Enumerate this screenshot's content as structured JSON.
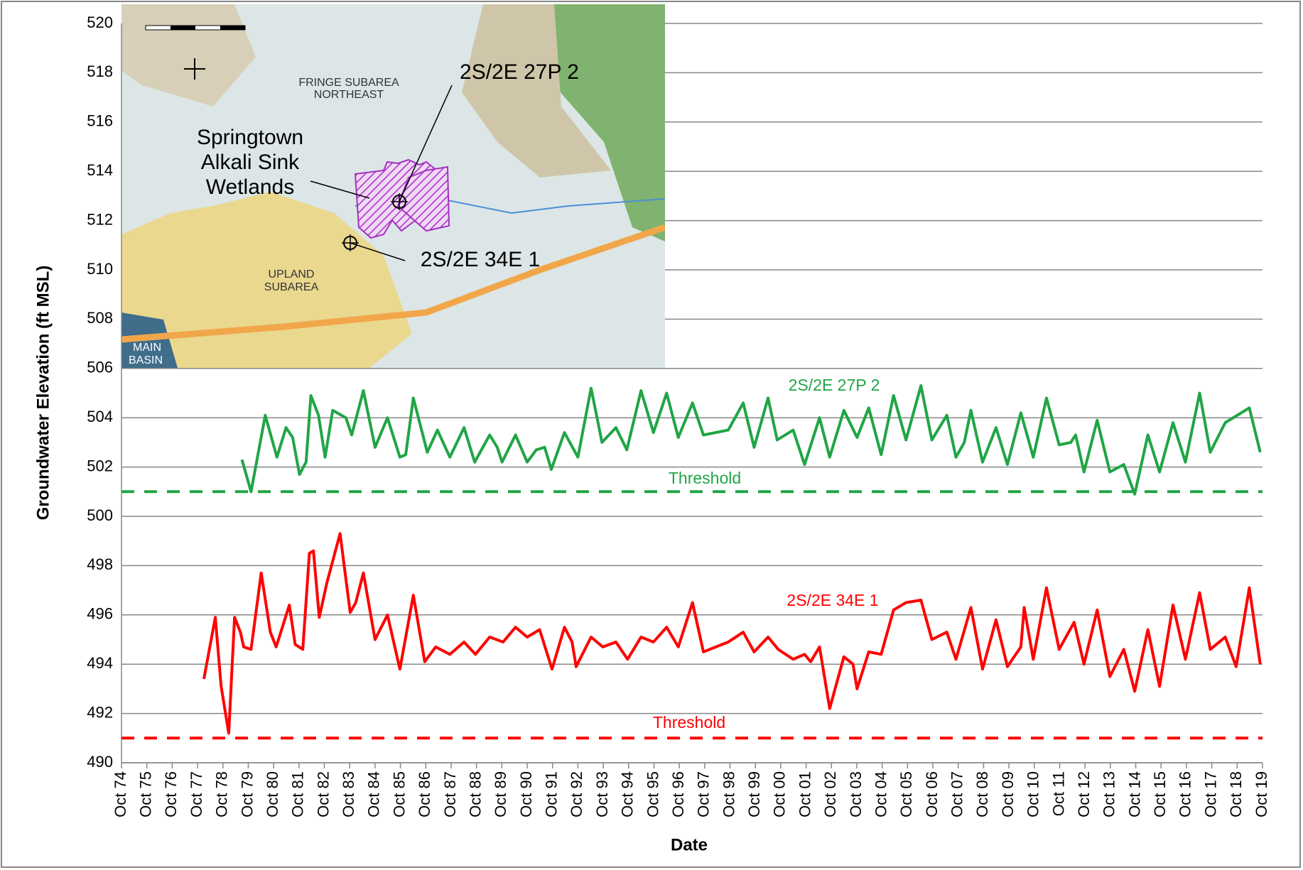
{
  "chart_data": {
    "type": "line",
    "y_label": "Groundwater Elevation (ft MSL)",
    "x_label": "Date",
    "xlim": [
      1974.75,
      2019.75
    ],
    "xticks": [
      {
        "value": 1974.75,
        "label": "Oct 74"
      },
      {
        "value": 1975.75,
        "label": "Oct 75"
      },
      {
        "value": 1976.75,
        "label": "Oct 76"
      },
      {
        "value": 1977.75,
        "label": "Oct 77"
      },
      {
        "value": 1978.75,
        "label": "Oct 78"
      },
      {
        "value": 1979.75,
        "label": "Oct 79"
      },
      {
        "value": 1980.75,
        "label": "Oct 80"
      },
      {
        "value": 1981.75,
        "label": "Oct 81"
      },
      {
        "value": 1982.75,
        "label": "Oct 82"
      },
      {
        "value": 1983.75,
        "label": "Oct 83"
      },
      {
        "value": 1984.75,
        "label": "Oct 84"
      },
      {
        "value": 1985.75,
        "label": "Oct 85"
      },
      {
        "value": 1986.75,
        "label": "Oct 86"
      },
      {
        "value": 1987.75,
        "label": "Oct 87"
      },
      {
        "value": 1988.75,
        "label": "Oct 88"
      },
      {
        "value": 1989.75,
        "label": "Oct 89"
      },
      {
        "value": 1990.75,
        "label": "Oct 90"
      },
      {
        "value": 1991.75,
        "label": "Oct 91"
      },
      {
        "value": 1992.75,
        "label": "Oct 92"
      },
      {
        "value": 1993.75,
        "label": "Oct 93"
      },
      {
        "value": 1994.75,
        "label": "Oct 94"
      },
      {
        "value": 1995.75,
        "label": "Oct 95"
      },
      {
        "value": 1996.75,
        "label": "Oct 96"
      },
      {
        "value": 1997.75,
        "label": "Oct 97"
      },
      {
        "value": 1998.75,
        "label": "Oct 98"
      },
      {
        "value": 1999.75,
        "label": "Oct 99"
      },
      {
        "value": 2000.75,
        "label": "Oct 00"
      },
      {
        "value": 2001.75,
        "label": "Oct 01"
      },
      {
        "value": 2002.75,
        "label": "Oct 02"
      },
      {
        "value": 2003.75,
        "label": "Oct 03"
      },
      {
        "value": 2004.75,
        "label": "Oct 04"
      },
      {
        "value": 2005.75,
        "label": "Oct 05"
      },
      {
        "value": 2006.75,
        "label": "Oct 06"
      },
      {
        "value": 2007.75,
        "label": "Oct 07"
      },
      {
        "value": 2008.75,
        "label": "Oct 08"
      },
      {
        "value": 2009.75,
        "label": "Oct 09"
      },
      {
        "value": 2010.75,
        "label": "Oct 10"
      },
      {
        "value": 2011.75,
        "label": "Oct 11"
      },
      {
        "value": 2012.75,
        "label": "Oct 12"
      },
      {
        "value": 2013.75,
        "label": "Oct 13"
      },
      {
        "value": 2014.75,
        "label": "Oct 14"
      },
      {
        "value": 2015.75,
        "label": "Oct 15"
      },
      {
        "value": 2016.75,
        "label": "Oct 16"
      },
      {
        "value": 2017.75,
        "label": "Oct 17"
      },
      {
        "value": 2018.75,
        "label": "Oct 18"
      },
      {
        "value": 2019.75,
        "label": "Oct 19"
      }
    ],
    "ylim": [
      490,
      520
    ],
    "yticks": [
      490,
      492,
      494,
      496,
      498,
      500,
      502,
      504,
      506,
      508,
      510,
      512,
      514,
      516,
      518,
      520
    ],
    "grid": true,
    "series": [
      {
        "name": "2S/2E 27P 2",
        "color": "#21a546",
        "dashed": false,
        "x": [
          1979.5,
          1979.86,
          1980.42,
          1980.88,
          1981.24,
          1981.5,
          1981.77,
          1982.03,
          1982.22,
          1982.52,
          1982.78,
          1983.08,
          1983.6,
          1983.83,
          1984.29,
          1984.75,
          1985.24,
          1985.73,
          1985.96,
          1986.26,
          1986.81,
          1987.21,
          1987.7,
          1988.26,
          1988.68,
          1989.27,
          1989.57,
          1989.76,
          1990.29,
          1990.75,
          1991.11,
          1991.44,
          1991.7,
          1992.22,
          1992.75,
          1993.27,
          1993.7,
          1994.25,
          1994.68,
          1995.24,
          1995.73,
          1996.25,
          1996.71,
          1997.27,
          1997.7,
          1998.68,
          1999.27,
          1999.7,
          2000.25,
          2000.61,
          2001.24,
          2001.69,
          2002.28,
          2002.68,
          2003.24,
          2003.76,
          2004.22,
          2004.71,
          2005.2,
          2005.69,
          2006.28,
          2006.71,
          2007.3,
          2007.66,
          2007.99,
          2008.25,
          2008.71,
          2009.24,
          2009.69,
          2010.22,
          2010.71,
          2011.23,
          2011.73,
          2012.19,
          2012.38,
          2012.71,
          2013.23,
          2013.73,
          2014.28,
          2014.71,
          2015.23,
          2015.69,
          2016.22,
          2016.71,
          2017.27,
          2017.69,
          2018.28,
          2019.23,
          2019.66
        ],
        "values": [
          502.3,
          501.0,
          504.1,
          502.4,
          503.6,
          503.2,
          501.7,
          502.2,
          504.9,
          504.1,
          502.4,
          504.3,
          504.0,
          503.3,
          505.1,
          502.8,
          504.0,
          502.4,
          502.5,
          504.8,
          502.6,
          503.5,
          502.4,
          503.6,
          502.2,
          503.3,
          502.8,
          502.2,
          503.3,
          502.2,
          502.7,
          502.8,
          501.9,
          503.4,
          502.4,
          505.2,
          503.0,
          503.6,
          502.7,
          505.1,
          503.4,
          505.0,
          503.2,
          504.6,
          503.3,
          503.5,
          504.6,
          502.8,
          504.8,
          503.1,
          503.5,
          502.1,
          504.0,
          502.4,
          504.3,
          503.2,
          504.4,
          502.5,
          504.9,
          503.1,
          505.3,
          503.1,
          504.1,
          502.4,
          503.0,
          504.3,
          502.2,
          503.6,
          502.1,
          504.2,
          502.4,
          504.8,
          502.9,
          503.0,
          503.3,
          501.8,
          503.9,
          501.8,
          502.1,
          500.9,
          503.3,
          501.8,
          503.8,
          502.2,
          505.0,
          502.6,
          503.8,
          504.4,
          502.6
        ]
      },
      {
        "name": "Threshold",
        "color": "#21a546",
        "dashed": true,
        "x": [
          1974.75,
          2019.75
        ],
        "values": [
          501,
          501
        ]
      },
      {
        "name": "2S/2E 34E 1",
        "color": "#ff0000",
        "dashed": false,
        "x": [
          1978.0,
          1978.45,
          1978.68,
          1978.98,
          1979.21,
          1979.44,
          1979.57,
          1979.86,
          1980.26,
          1980.62,
          1980.85,
          1981.37,
          1981.6,
          1981.9,
          1982.16,
          1982.32,
          1982.55,
          1982.85,
          1983.37,
          1983.77,
          1983.99,
          1984.29,
          1984.75,
          1985.24,
          1985.73,
          1986.26,
          1986.71,
          1987.14,
          1987.7,
          1988.26,
          1988.71,
          1989.27,
          1989.8,
          1990.29,
          1990.75,
          1991.24,
          1991.73,
          1992.22,
          1992.52,
          1992.68,
          1993.27,
          1993.73,
          1994.25,
          1994.71,
          1995.24,
          1995.73,
          1996.25,
          1996.71,
          1997.27,
          1997.7,
          1998.68,
          1999.27,
          1999.7,
          2000.25,
          2000.65,
          2001.24,
          2001.69,
          2001.93,
          2002.28,
          2002.68,
          2003.24,
          2003.6,
          2003.76,
          2004.22,
          2004.71,
          2005.2,
          2005.69,
          2006.28,
          2006.71,
          2007.3,
          2007.66,
          2008.25,
          2008.71,
          2009.24,
          2009.69,
          2010.22,
          2010.35,
          2010.71,
          2011.23,
          2011.73,
          2012.32,
          2012.71,
          2013.23,
          2013.73,
          2014.28,
          2014.71,
          2015.23,
          2015.69,
          2016.22,
          2016.71,
          2017.27,
          2017.69,
          2018.28,
          2018.71,
          2019.23,
          2019.66
        ],
        "values": [
          493.4,
          495.9,
          493.1,
          491.2,
          495.9,
          495.3,
          494.7,
          494.6,
          497.7,
          495.3,
          494.7,
          496.4,
          494.8,
          494.6,
          498.5,
          498.6,
          495.9,
          497.3,
          499.3,
          496.1,
          496.5,
          497.7,
          495.0,
          496.0,
          493.8,
          496.8,
          494.1,
          494.7,
          494.4,
          494.9,
          494.4,
          495.1,
          494.9,
          495.5,
          495.1,
          495.4,
          493.8,
          495.5,
          494.9,
          493.9,
          495.1,
          494.7,
          494.9,
          494.2,
          495.1,
          494.9,
          495.5,
          494.7,
          496.5,
          494.5,
          494.9,
          495.3,
          494.5,
          495.1,
          494.6,
          494.2,
          494.4,
          494.1,
          494.7,
          492.2,
          494.3,
          494.0,
          493.0,
          494.5,
          494.4,
          496.2,
          496.5,
          496.6,
          495.0,
          495.3,
          494.2,
          496.3,
          493.8,
          495.8,
          493.9,
          494.7,
          496.3,
          494.2,
          497.1,
          494.6,
          495.7,
          494.0,
          496.2,
          493.5,
          494.6,
          492.9,
          495.4,
          493.1,
          496.4,
          494.2,
          496.9,
          494.6,
          495.1,
          493.9,
          497.1,
          494.0
        ]
      },
      {
        "name": "Threshold",
        "color": "#ff0000",
        "dashed": true,
        "x": [
          1974.75,
          2019.75
        ],
        "values": [
          491,
          491
        ]
      }
    ],
    "inset_map": {
      "wetlands_label": [
        "Springtown",
        "Alkali Sink",
        "Wetlands"
      ],
      "well_labels": [
        "2S/2E 27P 2",
        "2S/2E 34E 1"
      ],
      "area_labels": [
        [
          "FRINGE SUBAREA",
          "NORTHEAST"
        ],
        [
          "UPLAND",
          "SUBAREA"
        ],
        [
          "MAIN",
          "BASIN"
        ]
      ]
    }
  }
}
